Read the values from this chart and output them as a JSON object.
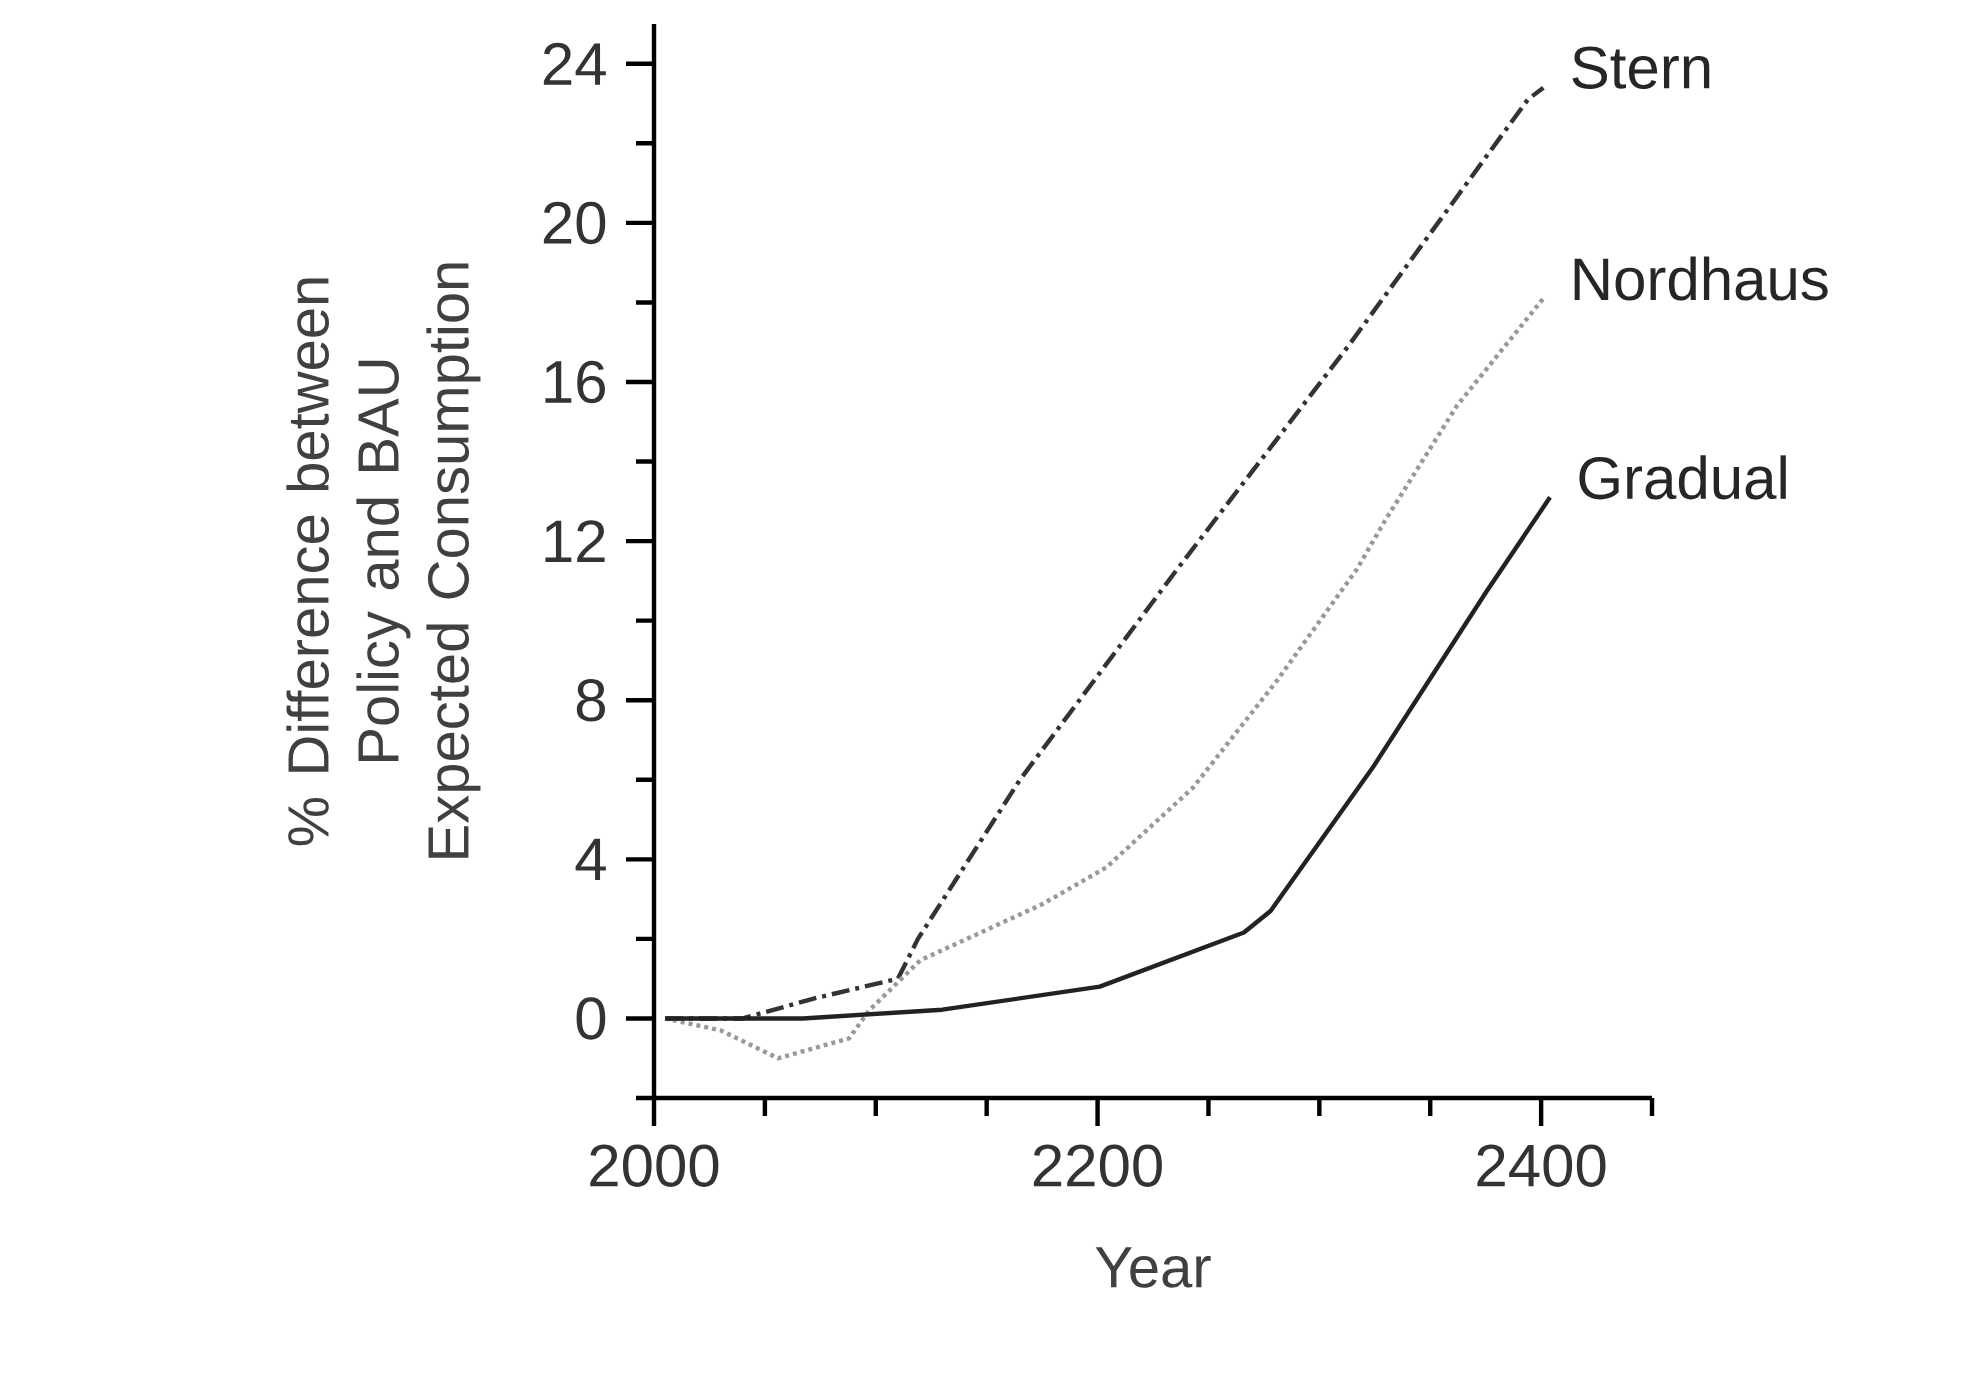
{
  "chart_data": {
    "type": "line",
    "xlabel": "Year",
    "ylabel": "% Difference between Policy and BAU Expected Consumption",
    "xlim": [
      2000,
      2450
    ],
    "ylim": [
      -2,
      25
    ],
    "xticks": [
      2000,
      {
        "value": 2050,
        "label": null
      },
      {
        "value": 2100,
        "label": null
      },
      {
        "value": 2150,
        "label": null
      },
      2200,
      {
        "value": 2250,
        "label": null
      },
      {
        "value": 2300,
        "label": null
      },
      {
        "value": 2350,
        "label": null
      },
      2400,
      {
        "value": 2450,
        "label": null
      }
    ],
    "yticks": [
      {
        "value": -2,
        "label": null
      },
      0,
      {
        "value": 2,
        "label": null
      },
      4,
      {
        "value": 6,
        "label": null
      },
      8,
      {
        "value": 10,
        "label": null
      },
      12,
      {
        "value": 14,
        "label": null
      },
      16,
      {
        "value": 18,
        "label": null
      },
      20,
      {
        "value": 22,
        "label": null
      },
      24
    ],
    "grid": false,
    "legend": false,
    "series": [
      {
        "name": "Stern",
        "color": "#333333",
        "line_style": "dashed",
        "x": [
          2005,
          2040,
          2072,
          2110,
          2119,
          2165,
          2236,
          2313,
          2394,
          2401
        ],
        "values": [
          0,
          0,
          0.5,
          1.0,
          2.0,
          6.0,
          11.3,
          16.9,
          23.1,
          23.4
        ]
      },
      {
        "name": "Nordhaus",
        "color": "#999999",
        "line_style": "dotted",
        "x": [
          2005,
          2030,
          2056,
          2088,
          2097,
          2120,
          2175,
          2204,
          2243,
          2281,
          2317,
          2330,
          2362,
          2401
        ],
        "values": [
          0,
          -0.3,
          -1.0,
          -0.5,
          0.2,
          1.46,
          2.87,
          3.8,
          5.8,
          8.5,
          11.3,
          12.55,
          15.4,
          18.1
        ]
      },
      {
        "name": "Gradual",
        "color": "#222222",
        "line_style": "solid",
        "x": [
          2005,
          2067,
          2130,
          2201,
          2266,
          2278,
          2324,
          2375,
          2404
        ],
        "values": [
          0,
          0,
          0.22,
          0.8,
          2.16,
          2.7,
          6.3,
          10.7,
          13.1
        ]
      }
    ]
  }
}
